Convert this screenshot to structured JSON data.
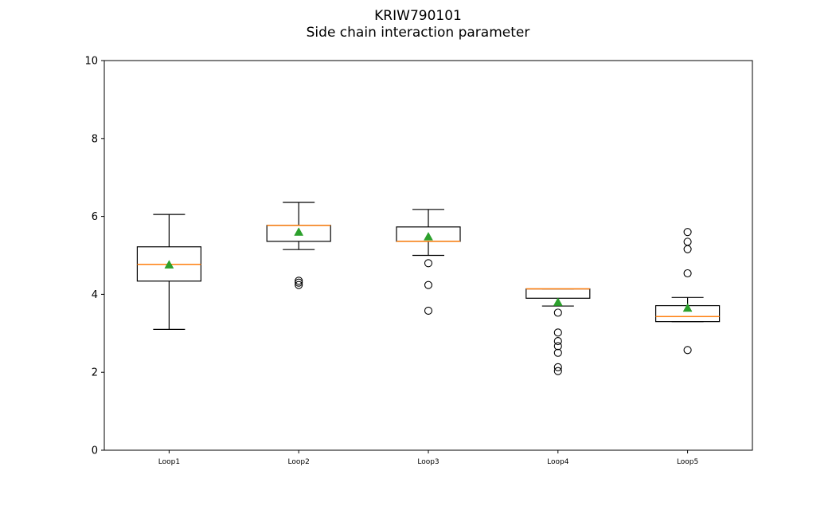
{
  "chart_data": {
    "type": "box",
    "title_lines": [
      "KRIW790101",
      "Side chain interaction parameter"
    ],
    "xlabel": "",
    "ylabel": "",
    "ylim": [
      0,
      10
    ],
    "yticks": [
      0,
      2,
      4,
      6,
      8,
      10
    ],
    "grid": false,
    "categories": [
      "Loop1",
      "Loop2",
      "Loop3",
      "Loop4",
      "Loop5"
    ],
    "boxes": [
      {
        "name": "Loop1",
        "whisker_low": 3.1,
        "q1": 4.34,
        "median": 4.77,
        "q3": 5.22,
        "whisker_high": 6.05,
        "mean": 4.76,
        "outliers": []
      },
      {
        "name": "Loop2",
        "whisker_low": 5.15,
        "q1": 5.36,
        "median": 5.77,
        "q3": 5.77,
        "whisker_high": 6.36,
        "mean": 5.6,
        "outliers": [
          4.24,
          4.3,
          4.35
        ]
      },
      {
        "name": "Loop3",
        "whisker_low": 5.0,
        "q1": 5.36,
        "median": 5.36,
        "q3": 5.73,
        "whisker_high": 6.18,
        "mean": 5.48,
        "outliers": [
          4.8,
          4.24,
          3.58
        ]
      },
      {
        "name": "Loop4",
        "whisker_low": 3.7,
        "q1": 3.9,
        "median": 4.14,
        "q3": 4.14,
        "whisker_high": 4.14,
        "mean": 3.8,
        "outliers": [
          3.53,
          3.02,
          2.8,
          2.67,
          2.5,
          2.13,
          2.03
        ]
      },
      {
        "name": "Loop5",
        "whisker_low": 3.3,
        "q1": 3.3,
        "median": 3.43,
        "q3": 3.71,
        "whisker_high": 3.92,
        "mean": 3.65,
        "outliers": [
          4.54,
          5.16,
          5.35,
          5.6,
          2.57
        ]
      }
    ],
    "colors": {
      "box": "#000000",
      "median": "#ff7f0e",
      "mean": "#2ca02c",
      "outlier": "#000000"
    }
  }
}
